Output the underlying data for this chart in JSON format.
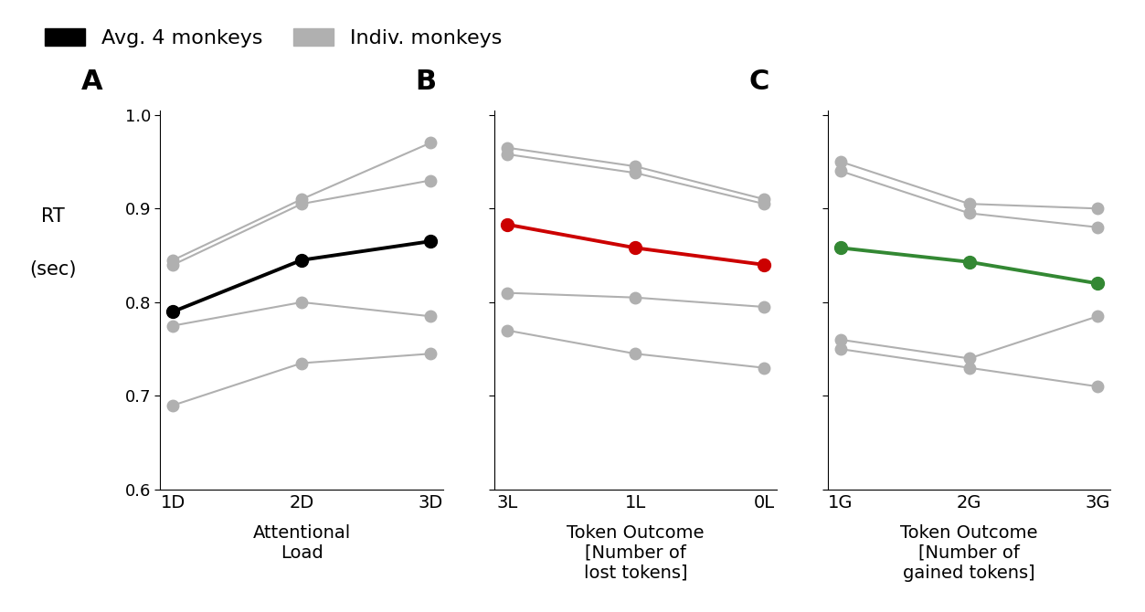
{
  "panel_A": {
    "x_labels": [
      "1D",
      "2D",
      "3D"
    ],
    "avg_line": [
      0.79,
      0.845,
      0.865
    ],
    "indiv_lines": [
      [
        0.845,
        0.91,
        0.97
      ],
      [
        0.84,
        0.905,
        0.93
      ],
      [
        0.775,
        0.8,
        0.785
      ],
      [
        0.69,
        0.735,
        0.745
      ]
    ],
    "avg_color": "#000000",
    "xlabel": "Attentional\nLoad",
    "panel_label": "A"
  },
  "panel_B": {
    "x_labels": [
      "3L",
      "1L",
      "0L"
    ],
    "avg_line": [
      0.883,
      0.858,
      0.84
    ],
    "indiv_lines": [
      [
        0.965,
        0.945,
        0.91
      ],
      [
        0.958,
        0.938,
        0.905
      ],
      [
        0.81,
        0.805,
        0.795
      ],
      [
        0.77,
        0.745,
        0.73
      ]
    ],
    "avg_color": "#cc0000",
    "xlabel": "Token Outcome\n[Number of\nlost tokens]",
    "panel_label": "B"
  },
  "panel_C": {
    "x_labels": [
      "1G",
      "2G",
      "3G"
    ],
    "avg_line": [
      0.858,
      0.843,
      0.82
    ],
    "indiv_lines": [
      [
        0.95,
        0.905,
        0.9
      ],
      [
        0.94,
        0.895,
        0.88
      ],
      [
        0.76,
        0.74,
        0.785
      ],
      [
        0.75,
        0.73,
        0.71
      ]
    ],
    "avg_color": "#338833",
    "xlabel": "Token Outcome\n[Number of\ngained tokens]",
    "panel_label": "C"
  },
  "indiv_color": "#b0b0b0",
  "ylabel_line1": "RT",
  "ylabel_line2": "(sec)",
  "ylim": [
    0.6,
    1.005
  ],
  "yticks": [
    0.6,
    0.7,
    0.8,
    0.9,
    1.0
  ],
  "avg_linewidth": 2.8,
  "indiv_linewidth": 1.5,
  "marker_size": 9,
  "avg_marker_size": 10,
  "background_color": "#ffffff",
  "legend_avg_label": "Avg. 4 monkeys",
  "legend_indiv_label": "Indiv. monkeys"
}
